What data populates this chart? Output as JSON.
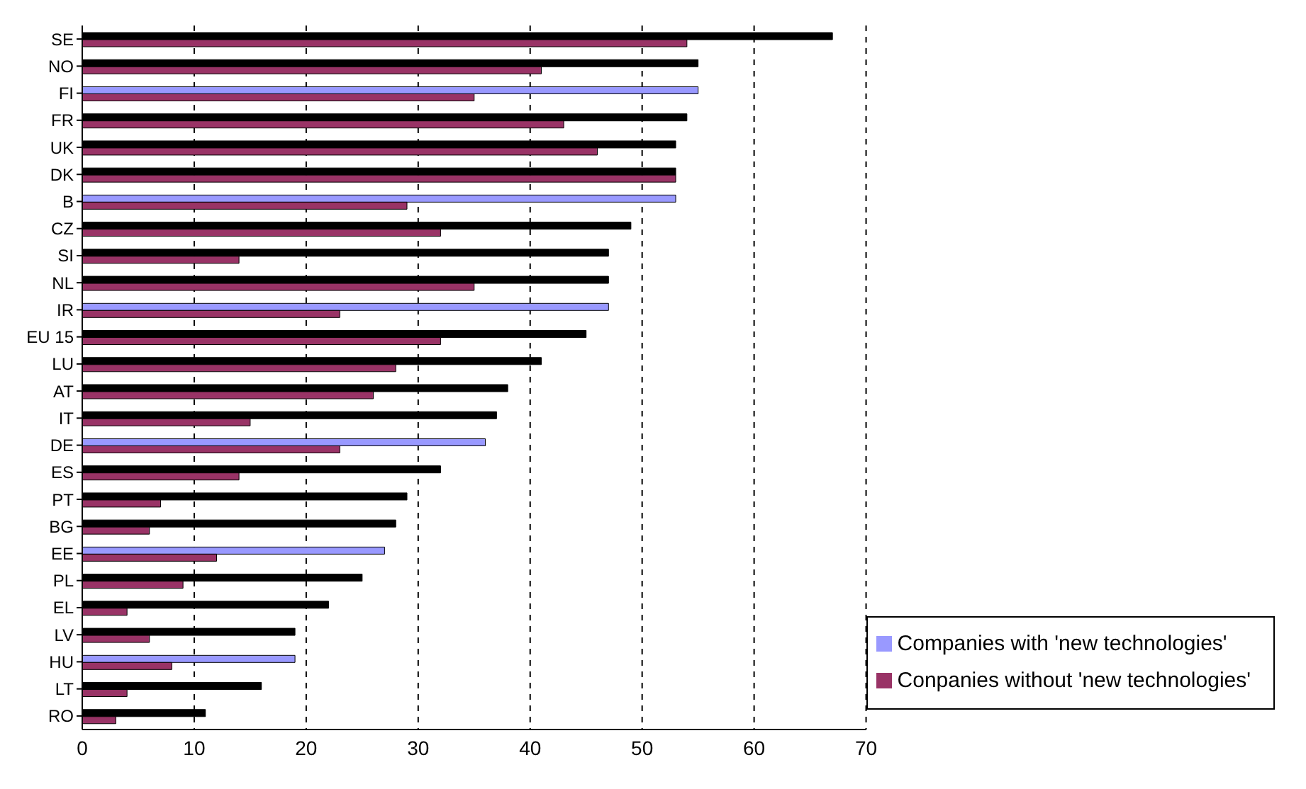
{
  "chart_data": {
    "type": "bar",
    "orientation": "horizontal",
    "categories": [
      "SE",
      "NO",
      "FI",
      "FR",
      "UK",
      "DK",
      "B",
      "CZ",
      "SI",
      "NL",
      "IR",
      "EU 15",
      "LU",
      "AT",
      "IT",
      "DE",
      "ES",
      "PT",
      "BG",
      "EE",
      "PL",
      "EL",
      "LV",
      "HU",
      "LT",
      "RO"
    ],
    "series": [
      {
        "name": "Companies with 'new technologies'",
        "color": "#9999ff",
        "colors": [
          "#000000",
          "#000000",
          "#9999ff",
          "#000000",
          "#000000",
          "#000000",
          "#9999ff",
          "#000000",
          "#000000",
          "#000000",
          "#9999ff",
          "#000000",
          "#000000",
          "#000000",
          "#000000",
          "#9999ff",
          "#000000",
          "#000000",
          "#000000",
          "#9999ff",
          "#000000",
          "#000000",
          "#000000",
          "#9999ff",
          "#000000",
          "#000000"
        ],
        "values": [
          67,
          55,
          55,
          54,
          53,
          53,
          53,
          49,
          47,
          47,
          47,
          45,
          41,
          38,
          37,
          36,
          32,
          29,
          28,
          27,
          25,
          22,
          19,
          19,
          16,
          11
        ]
      },
      {
        "name": "Conpanies without 'new technologies'",
        "color": "#993366",
        "values": [
          54,
          41,
          35,
          43,
          46,
          53,
          29,
          32,
          14,
          35,
          23,
          32,
          28,
          26,
          15,
          23,
          14,
          7,
          6,
          12,
          9,
          4,
          6,
          8,
          4,
          3
        ]
      }
    ],
    "xlim": [
      0,
      70
    ],
    "xticks": [
      0,
      10,
      20,
      30,
      40,
      50,
      60,
      70
    ],
    "grid": "x",
    "legend": "bottom right"
  }
}
